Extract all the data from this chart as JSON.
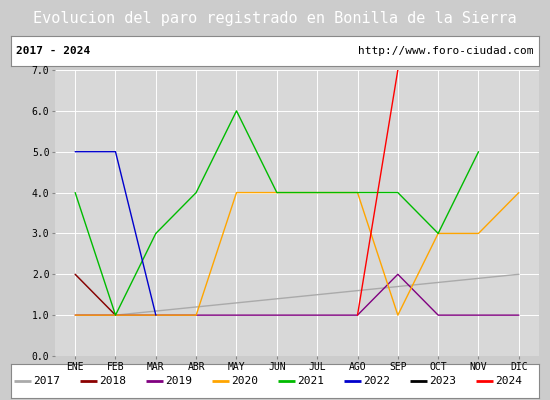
{
  "title": "Evolucion del paro registrado en Bonilla de la Sierra",
  "subtitle_left": "2017 - 2024",
  "subtitle_right": "http://www.foro-ciudad.com",
  "months": [
    "ENE",
    "FEB",
    "MAR",
    "ABR",
    "MAY",
    "JUN",
    "JUL",
    "AGO",
    "SEP",
    "OCT",
    "NOV",
    "DIC"
  ],
  "ylim": [
    0.0,
    7.0
  ],
  "yticks": [
    0.0,
    1.0,
    2.0,
    3.0,
    4.0,
    5.0,
    6.0,
    7.0
  ],
  "series": {
    "2017": {
      "color": "#aaaaaa",
      "values": [
        2,
        1,
        null,
        null,
        null,
        null,
        null,
        null,
        null,
        null,
        null,
        2
      ]
    },
    "2018": {
      "color": "#8b0000",
      "values": [
        2,
        1,
        null,
        null,
        null,
        null,
        null,
        null,
        null,
        null,
        null,
        null
      ]
    },
    "2019": {
      "color": "#800080",
      "values": [
        1,
        1,
        1,
        1,
        1,
        1,
        1,
        1,
        2,
        1,
        1,
        1
      ]
    },
    "2020": {
      "color": "#ffa500",
      "values": [
        1,
        1,
        1,
        1,
        4,
        4,
        4,
        4,
        1,
        3,
        3,
        4
      ]
    },
    "2021": {
      "color": "#00bb00",
      "values": [
        4,
        1,
        3,
        4,
        6,
        4,
        4,
        4,
        4,
        3,
        5,
        null
      ]
    },
    "2022": {
      "color": "#0000cc",
      "values": [
        5,
        5,
        1,
        null,
        null,
        null,
        null,
        null,
        null,
        null,
        null,
        null
      ]
    },
    "2023": {
      "color": "#000000",
      "values": [
        null,
        null,
        null,
        null,
        null,
        null,
        null,
        null,
        null,
        null,
        null,
        2
      ]
    },
    "2024": {
      "color": "#ff0000",
      "values": [
        null,
        null,
        null,
        null,
        null,
        null,
        null,
        1,
        7,
        null,
        null,
        null
      ]
    }
  },
  "title_bg": "#4466bb",
  "title_color": "#ffffff",
  "title_fontsize": 11,
  "subtitle_fontsize": 8,
  "legend_fontsize": 8,
  "tick_fontsize": 7,
  "outer_bg": "#cccccc",
  "plot_bg": "#d8d8d8",
  "grid_color": "#ffffff",
  "line_width": 1.0
}
